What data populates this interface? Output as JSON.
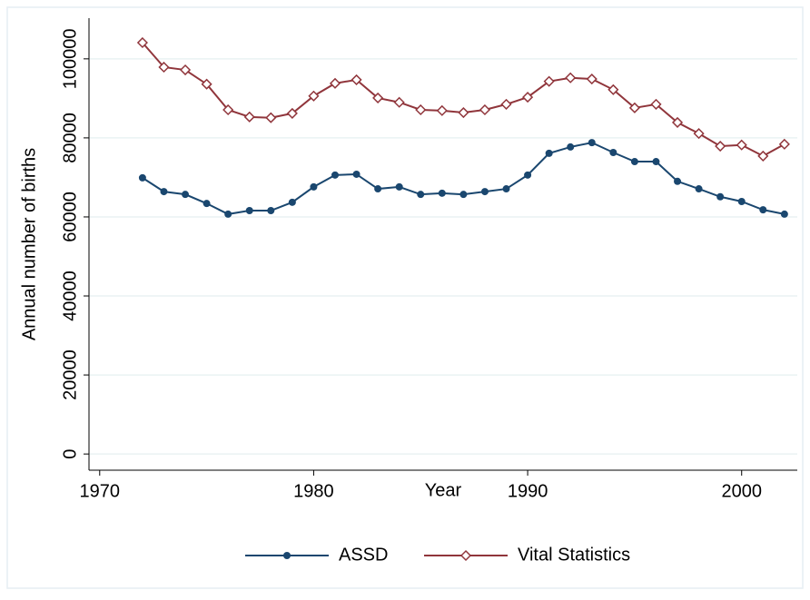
{
  "chart_data": {
    "type": "line",
    "x_label": "Year",
    "y_label": "Annual number of births",
    "x": [
      1972,
      1973,
      1974,
      1975,
      1976,
      1977,
      1978,
      1979,
      1980,
      1981,
      1982,
      1983,
      1984,
      1985,
      1986,
      1987,
      1988,
      1989,
      1990,
      1991,
      1992,
      1993,
      1994,
      1995,
      1996,
      1997,
      1998,
      1999,
      2000,
      2001,
      2002
    ],
    "series": [
      {
        "name": "ASSD",
        "color": "#1a476f",
        "marker": "circle",
        "values": [
          69900,
          66400,
          65700,
          63400,
          60700,
          61600,
          61600,
          63700,
          67600,
          70600,
          70800,
          67100,
          67600,
          65700,
          66000,
          65700,
          66400,
          67100,
          70600,
          76100,
          77700,
          78800,
          76300,
          74000,
          74000,
          69000,
          67100,
          65100,
          63900,
          61800,
          60700
        ]
      },
      {
        "name": "Vital Statistics",
        "color": "#90353b",
        "marker": "diamond",
        "values": [
          104100,
          97900,
          97200,
          93600,
          87100,
          85300,
          85100,
          86200,
          90600,
          93800,
          94700,
          90100,
          89000,
          87100,
          86900,
          86400,
          87100,
          88500,
          90300,
          94300,
          95200,
          94900,
          92200,
          87600,
          88500,
          83900,
          81100,
          77900,
          78200,
          75400,
          78400
        ]
      }
    ],
    "xlim": [
      1969.5,
      2002.6
    ],
    "xticks": [
      1970,
      1980,
      1990,
      2000
    ],
    "ylim": [
      -4100,
      110300
    ],
    "yticks": [
      0,
      20000,
      40000,
      60000,
      80000,
      100000
    ],
    "grid": true,
    "legend": "bottom"
  }
}
